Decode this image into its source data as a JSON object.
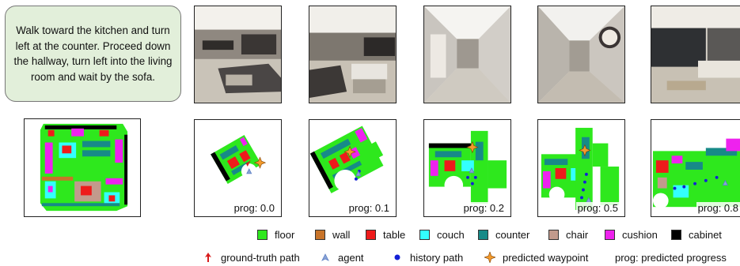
{
  "instruction": "Walk toward the kitchen and turn left at the counter. Proceed down the hallway, turn left into the living room and wait by the sofa.",
  "steps": [
    {
      "prog": "prog: 0.0"
    },
    {
      "prog": "prog: 0.1"
    },
    {
      "prog": "prog: 0.2"
    },
    {
      "prog": "prog: 0.5"
    },
    {
      "prog": "prog: 0.8"
    }
  ],
  "legend_categories": [
    {
      "label": "floor",
      "color": "#2ee81d"
    },
    {
      "label": "wall",
      "color": "#c8742a"
    },
    {
      "label": "table",
      "color": "#ee1b1b"
    },
    {
      "label": "couch",
      "color": "#33ffff"
    },
    {
      "label": "counter",
      "color": "#178a88"
    },
    {
      "label": "chair",
      "color": "#c29a8c"
    },
    {
      "label": "cushion",
      "color": "#ee22ee"
    },
    {
      "label": "cabinet",
      "color": "#000000"
    }
  ],
  "legend_symbols": [
    {
      "label": "ground-truth path",
      "icon": "red-arrow-icon",
      "color": "#d81b1b"
    },
    {
      "label": "agent",
      "icon": "agent-triangle-icon",
      "color": "#5b7fc4"
    },
    {
      "label": "history path",
      "icon": "blue-dot-icon",
      "color": "#1420d6"
    },
    {
      "label": "predicted waypoint",
      "icon": "orange-star-icon",
      "color": "#f39a2b"
    },
    {
      "label": "prog: predicted progress",
      "icon": "",
      "color": ""
    }
  ]
}
